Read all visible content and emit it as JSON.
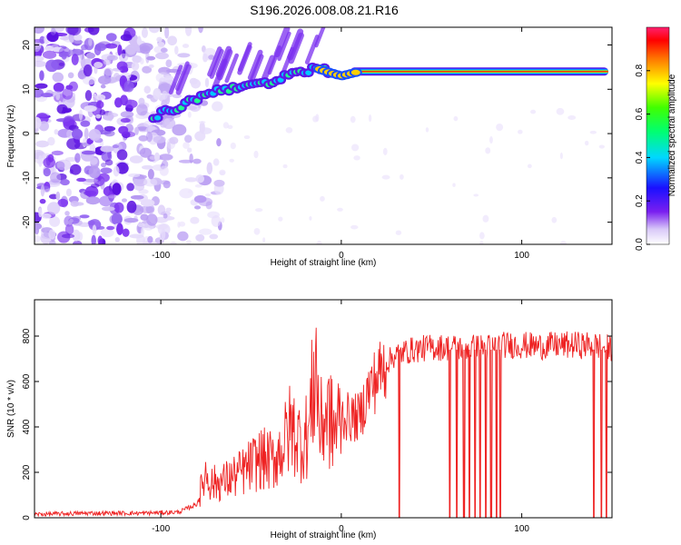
{
  "title": "S196.2026.008.08.21.R16",
  "chart_data": [
    {
      "type": "heatmap",
      "xlabel": "Height of straight line (km)",
      "ylabel": "Frequency (Hz)",
      "xlim": [
        -170,
        150
      ],
      "ylim": [
        -25,
        24
      ],
      "xticks": [
        -100,
        0,
        100
      ],
      "yticks": [
        -20,
        -10,
        0,
        10,
        20
      ],
      "colorbar": {
        "label": "Normalized spectral amplitude",
        "range": [
          0,
          1
        ],
        "ticks": [
          "0.0",
          "0.2",
          "0.4",
          "0.6",
          "0.8"
        ]
      },
      "signal": {
        "points": [
          {
            "x": -104,
            "y": 4
          },
          {
            "x": -95,
            "y": 5
          },
          {
            "x": -85,
            "y": 7
          },
          {
            "x": -75,
            "y": 9
          },
          {
            "x": -65,
            "y": 10
          },
          {
            "x": -55,
            "y": 11
          },
          {
            "x": -40,
            "y": 11
          },
          {
            "x": -30,
            "y": 13
          },
          {
            "x": -20,
            "y": 14
          },
          {
            "x": -15,
            "y": 15
          },
          {
            "x": -8,
            "y": 14
          },
          {
            "x": 0,
            "y": 13
          },
          {
            "x": 10,
            "y": 14
          },
          {
            "x": 20,
            "y": 14
          },
          {
            "x": 148,
            "y": 14
          }
        ]
      }
    },
    {
      "type": "line",
      "xlabel": "Height of straight line (km)",
      "ylabel": "SNR (10 * v/v)",
      "xlim": [
        -170,
        150
      ],
      "ylim": [
        0,
        960
      ],
      "xticks": [
        -100,
        0,
        100
      ],
      "yticks": [
        0,
        200,
        400,
        600,
        800
      ],
      "color": "#ee2222",
      "series": [
        {
          "x": [
            -170,
            -140,
            -110,
            -90,
            -80,
            -75,
            -72,
            -65,
            -55,
            -45,
            -38,
            -32,
            -28,
            -22,
            -18,
            -14,
            -12,
            -8,
            -4,
            0,
            5,
            10,
            15,
            20,
            25,
            30,
            40,
            50,
            60,
            70,
            80,
            90,
            100,
            110,
            120,
            130,
            140,
            148
          ],
          "y": [
            15,
            20,
            20,
            25,
            60,
            200,
            150,
            160,
            200,
            260,
            250,
            320,
            400,
            330,
            380,
            700,
            380,
            470,
            380,
            450,
            440,
            440,
            560,
            620,
            680,
            720,
            740,
            750,
            750,
            750,
            750,
            760,
            760,
            755,
            760,
            760,
            760,
            750
          ],
          "dropouts_x": [
            32,
            60,
            64,
            68,
            71,
            74,
            77,
            80,
            83,
            86,
            88,
            140,
            144,
            147
          ]
        }
      ]
    }
  ]
}
